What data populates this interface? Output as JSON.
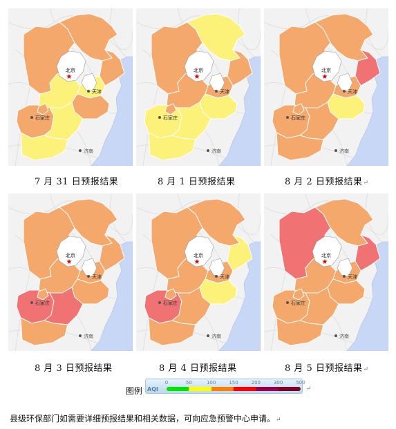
{
  "panels": [
    {
      "caption": "7 月 31 日预报结果",
      "colors": {
        "nw": "#f5a86b",
        "ne": "#f5a86b",
        "e": "#f5a86b",
        "c": "#fcf27a",
        "m": "#fcf27a",
        "sw": "#f5a86b",
        "se": "#f5a86b",
        "s": "#fcf27a",
        "ss": "#fcf27a",
        "sc": "#f5a86b"
      }
    },
    {
      "caption": "8 月 1 日预报结果",
      "colors": {
        "nw": "#f5a86b",
        "ne": "#fcf27a",
        "e": "#f5a86b",
        "c": "#f5a86b",
        "m": "#f5a86b",
        "sw": "#fcf27a",
        "se": "#fcf27a",
        "s": "#fcf27a",
        "ss": "#fcf27a",
        "sc": "#f5a86b"
      }
    },
    {
      "caption": "8 月 2 日预报结果",
      "colors": {
        "nw": "#f5a86b",
        "ne": "#f5a86b",
        "e": "#f07272",
        "c": "#f5a86b",
        "m": "#f5a86b",
        "sw": "#f5a86b",
        "se": "#fcf27a",
        "s": "#f5a86b",
        "ss": "#f5a86b",
        "sc": "#f5a86b"
      }
    },
    {
      "caption": "8 月 3 日预报结果",
      "colors": {
        "nw": "#f5a86b",
        "ne": "#f5a86b",
        "e": "#f5a86b",
        "c": "#f5a86b",
        "m": "#f5a86b",
        "sw": "#f07272",
        "se": "#f5a86b",
        "s": "#f07272",
        "ss": "#f5a86b",
        "sc": "#f5a86b"
      }
    },
    {
      "caption": "8 月 4 日预报结果",
      "colors": {
        "nw": "#f5a86b",
        "ne": "#f5a86b",
        "e": "#fcf27a",
        "c": "#f5a86b",
        "m": "#f5a86b",
        "sw": "#f07272",
        "se": "#fcf27a",
        "s": "#f5a86b",
        "ss": "#f5a86b",
        "sc": "#f5a86b"
      }
    },
    {
      "caption": "8 月 5 日预报结果",
      "colors": {
        "nw": "#f07272",
        "ne": "#f5a86b",
        "e": "#f07272",
        "c": "#f5a86b",
        "m": "#f5a86b",
        "sw": "#f5a86b",
        "se": "#f5a86b",
        "s": "#f5a86b",
        "ss": "#f5a86b",
        "sc": "#f5a86b"
      }
    }
  ],
  "map_labels": {
    "beijing": "北京",
    "tianjin": "天津",
    "shijiazhuang": "石家庄",
    "jinan": "济南"
  },
  "legend": {
    "title": "图例",
    "aqi_label": "AQI",
    "ticks": [
      "0",
      "50",
      "100",
      "150",
      "200",
      "300",
      "500"
    ],
    "colors": [
      "#00e400",
      "#ffff00",
      "#ff7e00",
      "#ff0000",
      "#99004c",
      "#7e0023"
    ]
  },
  "note": "县级环保部门如需要详细预报结果和相关数据，可向应急预警中心申请。"
}
